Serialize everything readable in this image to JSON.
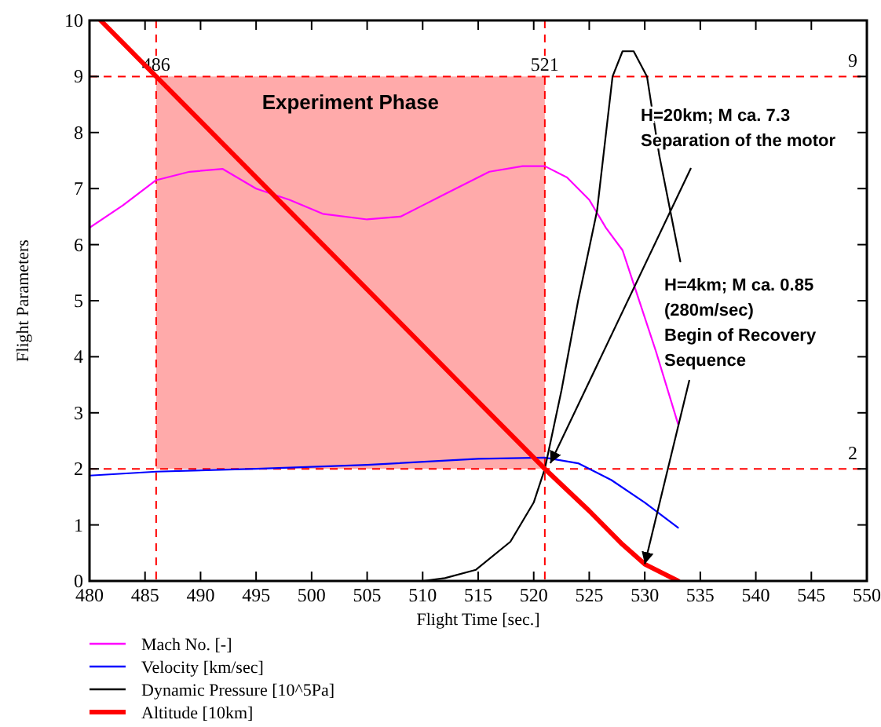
{
  "chart_data": {
    "type": "line",
    "xlabel": "Flight Time [sec.]",
    "ylabel": "Flight Parameters",
    "xlim": [
      480,
      550
    ],
    "xticks": [
      480,
      485,
      490,
      495,
      500,
      505,
      510,
      515,
      520,
      525,
      530,
      535,
      540,
      545,
      550
    ],
    "ylim": [
      0,
      10
    ],
    "yticks": [
      0,
      1,
      2,
      3,
      4,
      5,
      6,
      7,
      8,
      9,
      10
    ],
    "legend": "bottom",
    "marker": "none",
    "line_style": "solid",
    "series": [
      {
        "name": "Mach No. [-]",
        "color": "#ff00ff",
        "x": [
          480,
          483,
          486,
          489,
          492,
          495,
          498,
          501,
          505,
          508,
          510,
          512,
          516,
          519,
          521,
          523,
          525,
          526.5,
          528,
          529,
          531,
          533
        ],
        "values": [
          6.3,
          6.7,
          7.15,
          7.3,
          7.35,
          7.0,
          6.8,
          6.55,
          6.45,
          6.5,
          6.7,
          6.9,
          7.3,
          7.4,
          7.4,
          7.2,
          6.8,
          6.3,
          5.9,
          5.3,
          4.1,
          2.8
        ]
      },
      {
        "name": "Velocity [km/sec]",
        "color": "#0000ff",
        "x": [
          480,
          486,
          495,
          505,
          515,
          521,
          524,
          527,
          530,
          533
        ],
        "values": [
          1.88,
          1.95,
          2.0,
          2.07,
          2.18,
          2.2,
          2.1,
          1.8,
          1.4,
          0.95
        ]
      },
      {
        "name": "Dynamic Pressure [10^5Pa]",
        "color": "#000000",
        "x": [
          510,
          512,
          514.8,
          517.9,
          520,
          521,
          522.5,
          524,
          525.7,
          527.1,
          528,
          529,
          530.2,
          531.3,
          532.3,
          533.2
        ],
        "values": [
          0,
          0.05,
          0.2,
          0.7,
          1.4,
          2.0,
          3.4,
          5.0,
          6.6,
          9.0,
          9.45,
          9.45,
          9.0,
          7.6,
          6.6,
          5.7
        ]
      },
      {
        "name": "Altitude [10km]",
        "color": "#ff0000",
        "x": [
          481,
          486,
          495,
          505,
          515,
          521,
          525,
          528,
          530,
          533
        ],
        "values": [
          10,
          9.0,
          7.2,
          5.2,
          3.2,
          2.0,
          1.25,
          0.65,
          0.3,
          0
        ]
      }
    ],
    "ref_lines": [
      {
        "axis": "x",
        "value": 486,
        "label": "486",
        "color": "#ff0000",
        "line_style": "dashed"
      },
      {
        "axis": "x",
        "value": 521,
        "label": "521",
        "color": "#ff0000",
        "line_style": "dashed"
      },
      {
        "axis": "y",
        "value": 9,
        "label": "9",
        "color": "#ff0000",
        "line_style": "dashed"
      },
      {
        "axis": "y",
        "value": 2,
        "label": "2",
        "color": "#ff0000",
        "line_style": "dashed"
      }
    ],
    "bands": [
      {
        "axis": "x",
        "from": 486,
        "to": 521,
        "label": "Experiment Phase",
        "color": "#ffaaaa"
      }
    ],
    "annotations": [
      {
        "text": "H=20km; M ca. 7.3\nSeparation of the motor",
        "x": 521.5,
        "y": 2.1
      },
      {
        "text": "H=4km; M ca. 0.85\n(280m/sec)\nBegin of Recovery\nSequence",
        "x": 530,
        "y": 0.3
      }
    ]
  }
}
